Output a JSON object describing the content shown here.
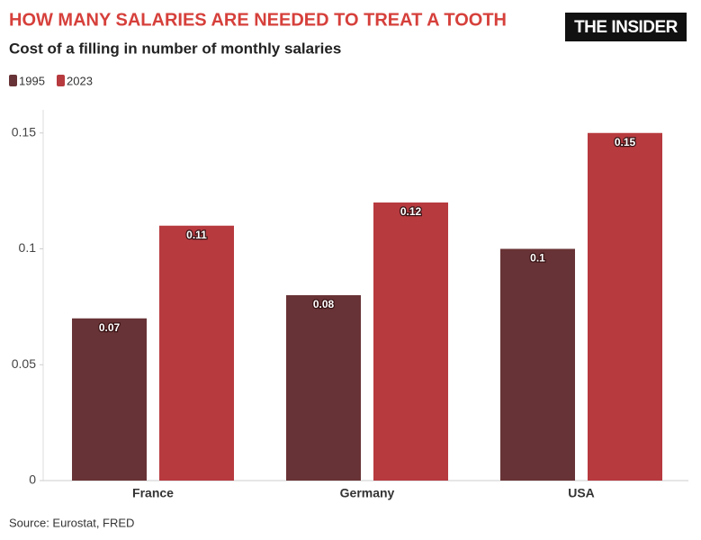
{
  "chart_data": {
    "type": "bar",
    "title": "HOW MANY SALARIES ARE NEEDED TO TREAT A TOOTH",
    "subtitle": "Cost of a filling in number of monthly salaries",
    "logo": "THE INSIDER",
    "source": "Source: Eurostat, FRED",
    "categories": [
      "France",
      "Germany",
      "USA"
    ],
    "series": [
      {
        "name": "1995",
        "color": "#683336",
        "values": [
          0.07,
          0.08,
          0.1
        ]
      },
      {
        "name": "2023",
        "color": "#b73a3f",
        "values": [
          0.11,
          0.12,
          0.15
        ]
      }
    ],
    "ylim": [
      0,
      0.16
    ],
    "yticks": [
      0,
      0.05,
      0.1,
      0.15
    ],
    "grid": false
  }
}
